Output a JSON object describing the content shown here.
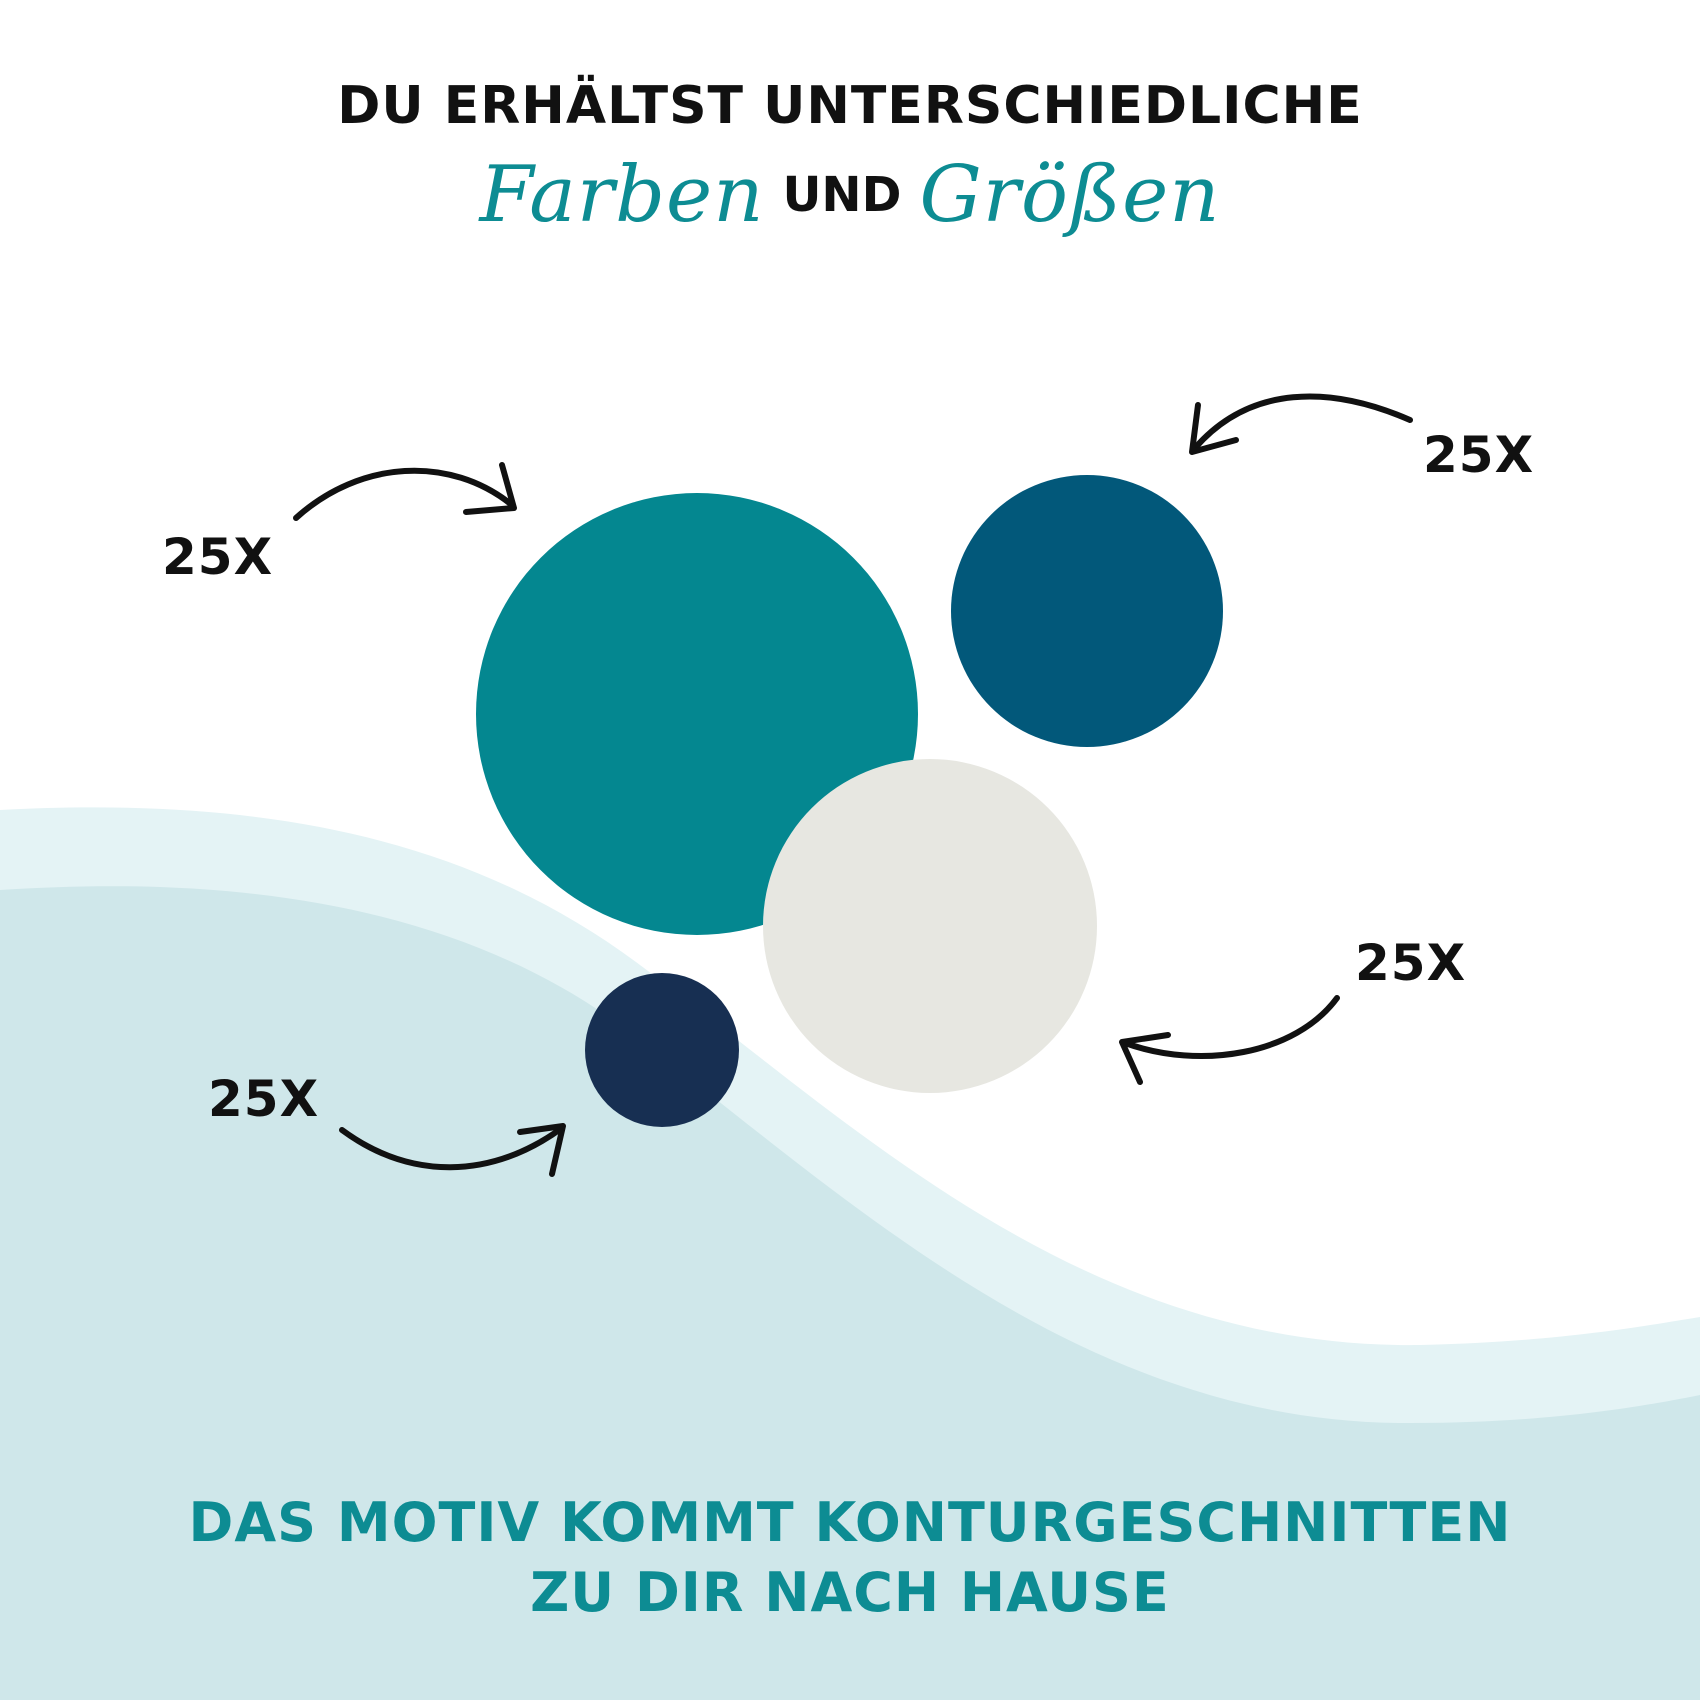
{
  "heading": {
    "line1": "DU ERHÄLTST UNTERSCHIEDLICHE",
    "word_colors": "Farben",
    "word_and": "UND",
    "word_sizes": "Größen"
  },
  "quantities": {
    "teal_large": "25X",
    "petrol_medium": "25X",
    "grey_medium": "25X",
    "navy_small": "25X"
  },
  "footer": {
    "line1": "DAS MOTIV KOMMT KONTURGESCHNITTEN",
    "line2": "ZU DIR NACH HAUSE"
  },
  "colors": {
    "teal": "#048790",
    "petrol": "#02587a",
    "grey": "#e7e7e1",
    "navy": "#172f52",
    "accent_text": "#0d8c93",
    "wave_light": "#e4f3f5",
    "wave_main": "#cfe7ea"
  }
}
